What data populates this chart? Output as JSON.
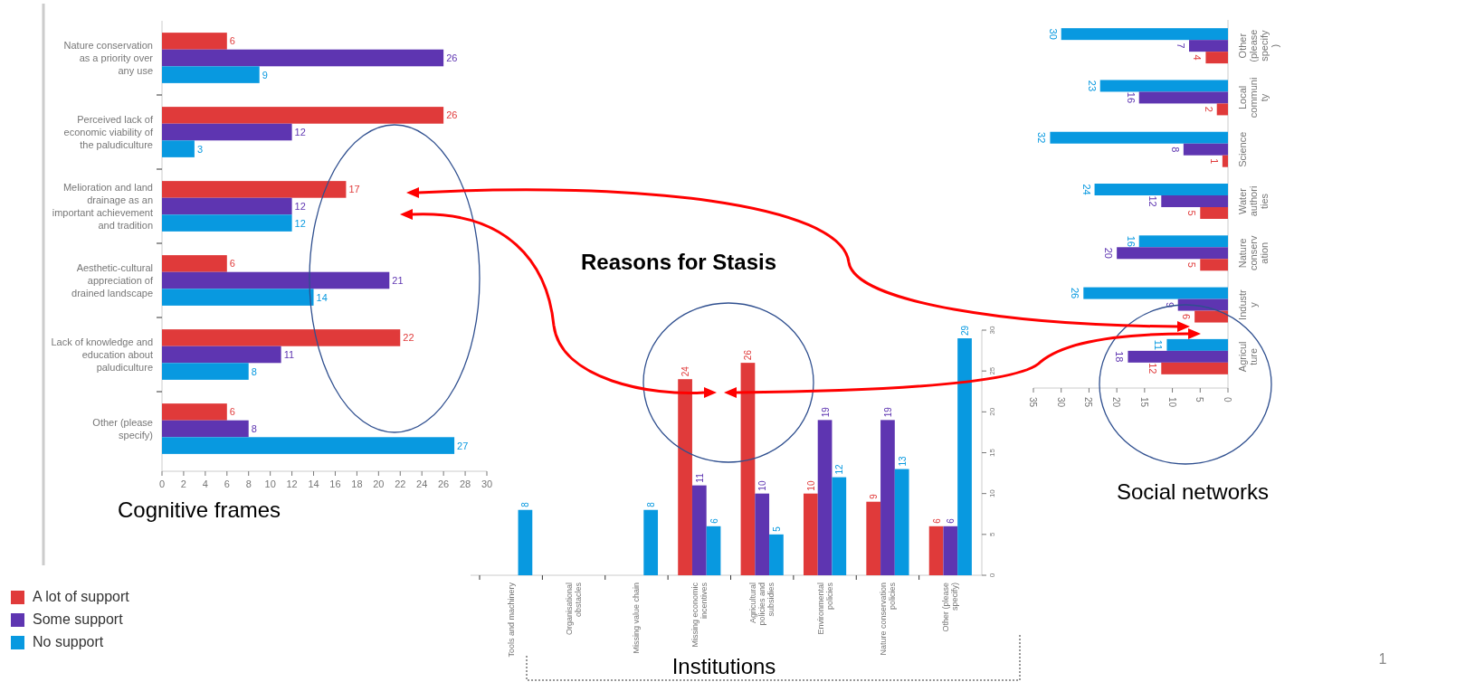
{
  "chart_data": [
    {
      "type": "bar",
      "title": "Cognitive frames",
      "orientation": "horizontal",
      "categories": [
        "Nature conservation as a priority over any use",
        "Perceived lack of economic viability of the paludiculture",
        "Melioration and land drainage as an important achievement and tradition",
        "Aesthetic-cultural appreciation of drained landscape",
        "Lack of knowledge and education about paludiculture",
        "Other (please specify)"
      ],
      "series": [
        {
          "name": "A lot of support",
          "color": "#e03a3a",
          "values": [
            6,
            26,
            17,
            6,
            22,
            6
          ]
        },
        {
          "name": "Some support",
          "color": "#5e35b1",
          "values": [
            26,
            12,
            12,
            21,
            11,
            8
          ]
        },
        {
          "name": "No support",
          "color": "#0899e0",
          "values": [
            9,
            3,
            12,
            14,
            8,
            27
          ]
        }
      ],
      "xlim": [
        0,
        30
      ],
      "xticks": [
        0,
        2,
        4,
        6,
        8,
        10,
        12,
        14,
        16,
        18,
        20,
        22,
        24,
        26,
        28,
        30
      ],
      "data_labels": true,
      "legend": "bottom left"
    },
    {
      "type": "bar",
      "title": "Institutions",
      "annotations": [
        "Reasons for Stasis"
      ],
      "categories": [
        "Tools and machinery",
        "Organisational obstacles",
        "Missing value chain",
        "Missing economic incentives",
        "Agricultural policies and subsidies",
        "Environmental policies",
        "Nature conservation policies",
        "Other (please specify)"
      ],
      "series": [
        {
          "color": "#e03a3a",
          "values": [
            null,
            null,
            null,
            24,
            26,
            10,
            9,
            6
          ]
        },
        {
          "color": "#5e35b1",
          "values": [
            null,
            null,
            null,
            11,
            10,
            19,
            19,
            6
          ]
        },
        {
          "color": "#0899e0",
          "values": [
            8,
            null,
            8,
            6,
            5,
            12,
            13,
            29
          ]
        }
      ],
      "ylim": [
        0,
        30
      ],
      "yticks": [
        0,
        5,
        10,
        15,
        20,
        25,
        30
      ],
      "data_labels": true
    },
    {
      "type": "bar",
      "title": "Social networks",
      "annotations": [
        "1"
      ],
      "orientation": "horizontal",
      "categories": [
        "Other (please specify)",
        "Local community",
        "Science",
        "Water authorities",
        "Nature conservation",
        "Industry",
        "Agriculture"
      ],
      "series": [
        {
          "color": "#0899e0",
          "values": [
            30,
            23,
            32,
            24,
            16,
            26,
            11
          ]
        },
        {
          "color": "#5e35b1",
          "values": [
            7,
            16,
            8,
            12,
            20,
            9,
            18
          ]
        },
        {
          "color": "#e03a3a",
          "values": [
            4,
            2,
            1,
            5,
            5,
            6,
            12
          ]
        }
      ],
      "xlim": [
        35,
        0
      ],
      "xticks": [
        35,
        30,
        25,
        20,
        15,
        10,
        5,
        0
      ],
      "data_labels": true
    }
  ]
}
